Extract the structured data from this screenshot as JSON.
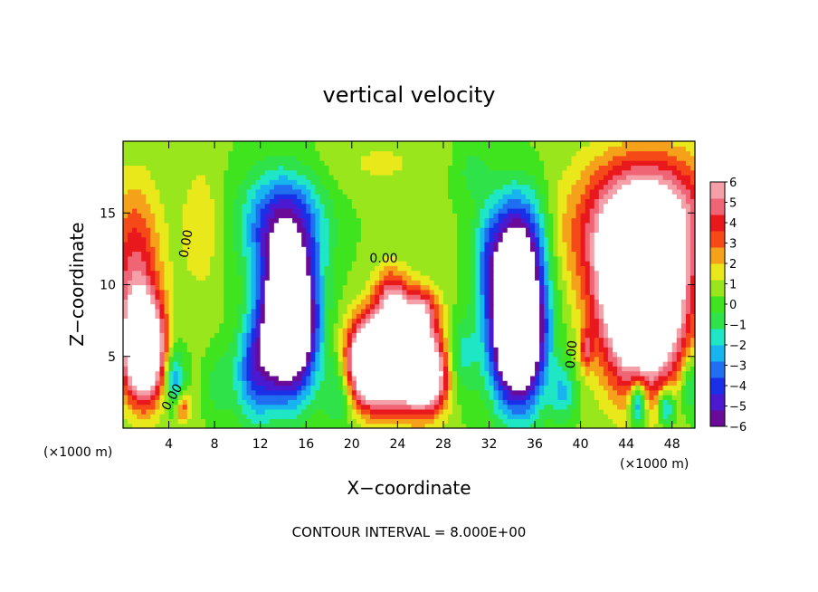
{
  "chart_data": {
    "type": "heatmap",
    "title": "vertical velocity",
    "xlabel": "X−coordinate",
    "ylabel": "Z−coordinate",
    "x_unit": "(×1000 m)",
    "xlim": [
      0,
      50
    ],
    "ylim": [
      0,
      20
    ],
    "x_ticks": [
      4,
      8,
      12,
      16,
      20,
      24,
      28,
      32,
      36,
      40,
      44,
      48
    ],
    "y_ticks": [
      5,
      10,
      15
    ],
    "contour_interval_text": "CONTOUR INTERVAL = 8.000E+00",
    "contour_label": "0.00",
    "colorbar": {
      "ticks": [
        6,
        5,
        4,
        3,
        2,
        1,
        0,
        -1,
        -2,
        -3,
        -4,
        -5,
        -6
      ],
      "range": [
        -6,
        6
      ],
      "above_max_color": "#ffffff",
      "below_min_color": "#ffffff",
      "colors": [
        "#6a0a98",
        "#4b1ad0",
        "#1a2fe8",
        "#1f6ff0",
        "#17b4f0",
        "#1fe6c4",
        "#2fe24a",
        "#3fe41f",
        "#9ae61c",
        "#e8e81a",
        "#f5a21a",
        "#f54a18",
        "#e8181d",
        "#f06575",
        "#f5a0a8"
      ]
    },
    "blobs": [
      {
        "x": 1.8,
        "z": 5.5,
        "sx": 1.2,
        "sz": 2.4,
        "w": 11
      },
      {
        "x": 1.0,
        "z": 11.0,
        "sx": 1.6,
        "sz": 4.0,
        "w": 4
      },
      {
        "x": 4.5,
        "z": 3.5,
        "sx": 0.6,
        "sz": 1.5,
        "w": -3.5
      },
      {
        "x": 5.2,
        "z": 1.5,
        "sx": 0.5,
        "sz": 0.8,
        "w": 3
      },
      {
        "x": 6.8,
        "z": 14.0,
        "sx": 1.2,
        "sz": 3.0,
        "w": 1.5
      },
      {
        "x": 11.5,
        "z": 4.0,
        "sx": 1.2,
        "sz": 2.5,
        "w": -4
      },
      {
        "x": 14.5,
        "z": 7.5,
        "sx": 1.6,
        "sz": 3.3,
        "w": -14
      },
      {
        "x": 14.0,
        "z": 14.2,
        "sx": 2.4,
        "sz": 2.6,
        "w": -5.5
      },
      {
        "x": 19.0,
        "z": 3.0,
        "sx": 1.0,
        "sz": 2.0,
        "w": -2.5
      },
      {
        "x": 21.5,
        "z": 4.5,
        "sx": 1.5,
        "sz": 2.0,
        "w": 9
      },
      {
        "x": 24.5,
        "z": 5.0,
        "sx": 2.2,
        "sz": 2.4,
        "w": 8.5
      },
      {
        "x": 26.5,
        "z": 3.5,
        "sx": 1.3,
        "sz": 1.6,
        "w": 6
      },
      {
        "x": 23.5,
        "z": 9.0,
        "sx": 1.0,
        "sz": 1.5,
        "w": 4
      },
      {
        "x": 26.0,
        "z": 8.2,
        "sx": 1.0,
        "sz": 1.1,
        "w": 3.5
      },
      {
        "x": 29.5,
        "z": 5.0,
        "sx": 1.0,
        "sz": 2.0,
        "w": -2.5
      },
      {
        "x": 32.0,
        "z": 11.5,
        "sx": 1.0,
        "sz": 2.5,
        "w": -2
      },
      {
        "x": 34.5,
        "z": 7.0,
        "sx": 1.6,
        "sz": 3.5,
        "w": -14
      },
      {
        "x": 34.5,
        "z": 13.2,
        "sx": 1.8,
        "sz": 2.6,
        "w": -5
      },
      {
        "x": 38.5,
        "z": 2.5,
        "sx": 0.8,
        "sz": 1.4,
        "w": -2.5
      },
      {
        "x": 40.5,
        "z": 5.5,
        "sx": 0.4,
        "sz": 1.0,
        "w": 3
      },
      {
        "x": 45.5,
        "z": 9.0,
        "sx": 2.5,
        "sz": 4.0,
        "w": 13
      },
      {
        "x": 46.0,
        "z": 15.0,
        "sx": 4.0,
        "sz": 3.0,
        "w": 5.5
      },
      {
        "x": 45.0,
        "z": 1.8,
        "sx": 0.5,
        "sz": 1.2,
        "w": -5
      },
      {
        "x": 47.5,
        "z": 1.5,
        "sx": 0.5,
        "sz": 1.0,
        "w": -4
      },
      {
        "x": 49.5,
        "z": 3.0,
        "sx": 0.6,
        "sz": 1.5,
        "w": -2.5
      },
      {
        "x": 42.0,
        "z": 12.0,
        "sx": 2.0,
        "sz": 3.0,
        "w": 1.5
      },
      {
        "x": 8.5,
        "z": 3.0,
        "sx": 0.8,
        "sz": 1.6,
        "w": -1.5
      },
      {
        "x": 22.5,
        "z": 18.5,
        "sx": 4.0,
        "sz": 1.5,
        "w": 0.8
      },
      {
        "x": 30.5,
        "z": 18.0,
        "sx": 1.2,
        "sz": 1.5,
        "w": -1.2
      },
      {
        "x": 38.0,
        "z": 13.0,
        "sx": 1.2,
        "sz": 2.5,
        "w": 0.8
      }
    ]
  }
}
